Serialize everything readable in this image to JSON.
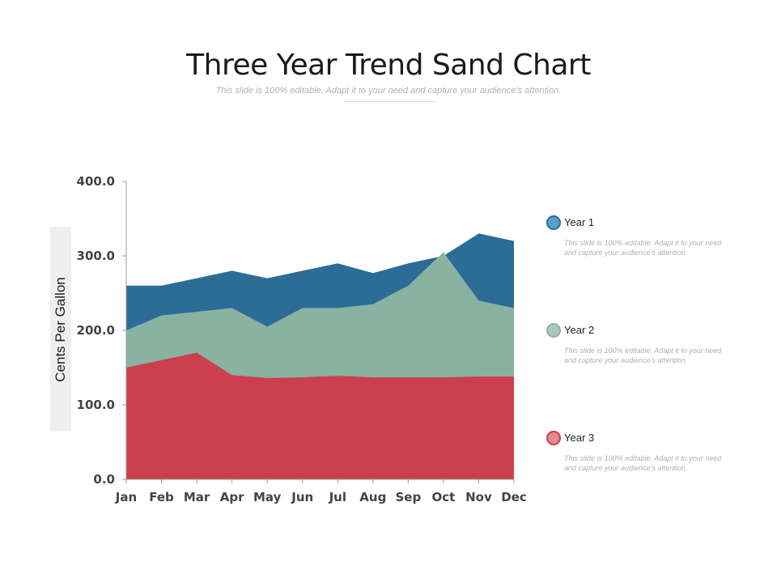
{
  "header": {
    "title": "Three Year Trend Sand Chart",
    "subtitle": "This slide is 100% editable. Adapt it to your need and capture your audience’s attention."
  },
  "chart_data": {
    "type": "area",
    "stacked": false,
    "categories": [
      "Jan",
      "Feb",
      "Mar",
      "Apr",
      "May",
      "Jun",
      "Jul",
      "Aug",
      "Sep",
      "Oct",
      "Nov",
      "Dec"
    ],
    "ylabel": "Cents Per Gallon",
    "xlabel": "",
    "ylim": [
      0,
      400
    ],
    "yticks": [
      0,
      100,
      200,
      300,
      400
    ],
    "ytick_labels": [
      "0.0",
      "100.0",
      "200.0",
      "300.0",
      "400.0"
    ],
    "grid": false,
    "legend_position": "right",
    "series": [
      {
        "name": "Year 1",
        "color": "#2b6d96",
        "values": [
          260,
          260,
          270,
          280,
          270,
          280,
          290,
          277,
          290,
          300,
          330,
          320
        ]
      },
      {
        "name": "Year 2",
        "color": "#8ab2a2",
        "values": [
          200,
          220,
          225,
          230,
          205,
          230,
          230,
          235,
          260,
          305,
          240,
          230
        ]
      },
      {
        "name": "Year 3",
        "color": "#cc3f4c",
        "values": [
          150,
          160,
          170,
          140,
          136,
          137,
          139,
          137,
          137,
          137,
          138,
          138
        ]
      }
    ]
  },
  "legend": [
    {
      "name": "Year 1",
      "dot_fill": "#5b9fd0",
      "dot_border": "#2b6d96",
      "desc": "This slide is 100% editable. Adapt it to your need and capture your audience’s attention."
    },
    {
      "name": "Year 2",
      "dot_fill": "#a9c9bd",
      "dot_border": "#8ab2a2",
      "desc": "This slide is 100% editable. Adapt it to your need and capture your audience’s attention."
    },
    {
      "name": "Year 3",
      "dot_fill": "#e58a93",
      "dot_border": "#cc3f4c",
      "desc": "This slide is 100% editable. Adapt it to your need and capture your audience’s attention."
    }
  ]
}
